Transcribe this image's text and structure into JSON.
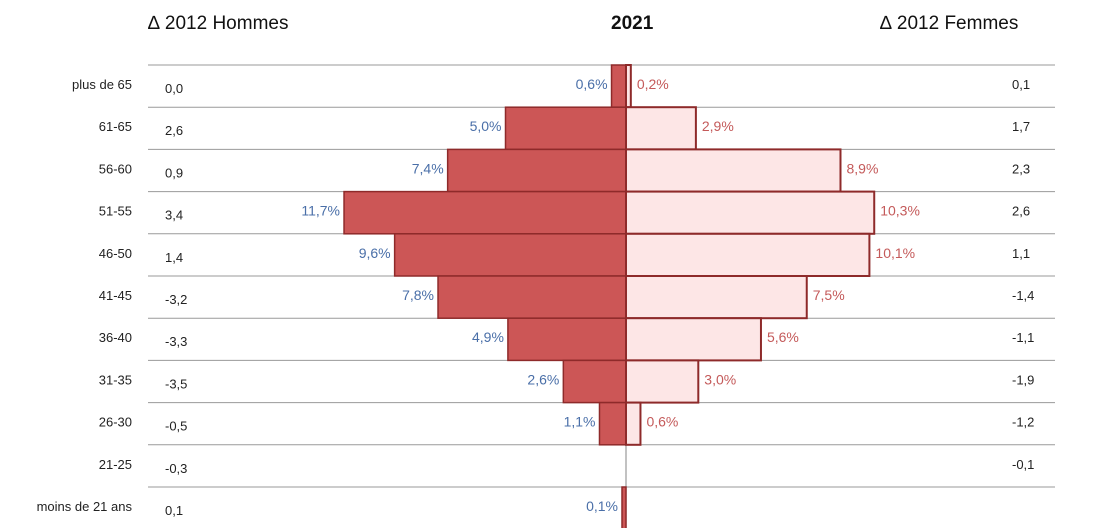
{
  "header": {
    "left": "∆ 2012 Hommes",
    "center": "2021",
    "right": "∆ 2012 Femmes"
  },
  "colors": {
    "men_fill": "#cc5656",
    "men_edge": "#8e2a2a",
    "women_fill": "#fde6e6",
    "women_edge": "#8e2a2a",
    "men_label": "#4a6fa8",
    "women_label": "#c45a5a",
    "gridline": "#9a9a9a"
  },
  "chart_data": {
    "type": "bar",
    "orientation": "horizontal-pyramid",
    "categories": [
      "plus de 65",
      "61-65",
      "56-60",
      "51-55",
      "46-50",
      "41-45",
      "36-40",
      "31-35",
      "26-30",
      "21-25",
      "moins de 21 ans"
    ],
    "series": [
      {
        "side": "left",
        "values": [
          0.6,
          5.0,
          7.4,
          11.7,
          9.6,
          7.8,
          4.9,
          2.6,
          1.1,
          0.0,
          0.1
        ],
        "labels": [
          "0,6%",
          "5,0%",
          "7,4%",
          "11,7%",
          "9,6%",
          "7,8%",
          "4,9%",
          "2,6%",
          "1,1%",
          "",
          "0,1%"
        ]
      },
      {
        "side": "right",
        "values": [
          0.2,
          2.9,
          8.9,
          10.3,
          10.1,
          7.5,
          5.6,
          3.0,
          0.6,
          0.0,
          0.0
        ],
        "labels": [
          "0,2%",
          "2,9%",
          "8,9%",
          "10,3%",
          "10,1%",
          "7,5%",
          "5,6%",
          "3,0%",
          "0,6%",
          "",
          ""
        ]
      }
    ],
    "delta_left": [
      "0,0",
      "2,6",
      "0,9",
      "3,4",
      "1,4",
      "-3,2",
      "-3,3",
      "-3,5",
      "-0,5",
      "-0,3",
      "0,1"
    ],
    "delta_right": [
      "0,1",
      "1,7",
      "2,3",
      "2,6",
      "1,1",
      "-1,4",
      "-1,1",
      "-1,9",
      "-1,2",
      "-0,1",
      ""
    ],
    "xlim": [
      0,
      12
    ],
    "grid": true,
    "legend": "none"
  }
}
